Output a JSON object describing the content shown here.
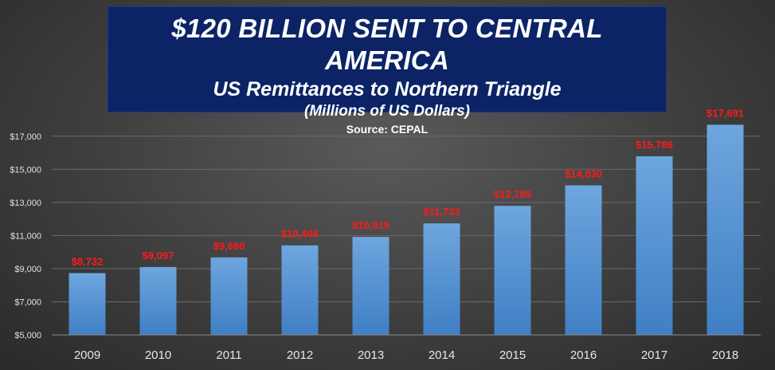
{
  "header": {
    "title": "$120 BILLION SENT TO CENTRAL AMERICA",
    "subtitle": "US Remittances to Northern Triangle",
    "units": "(Millions  of US Dollars)",
    "source": "Source: CEPAL"
  },
  "chart_data": {
    "type": "bar",
    "title": "$120 BILLION SENT TO CENTRAL AMERICA",
    "subtitle": "US Remittances to Northern Triangle",
    "categories": [
      "2009",
      "2010",
      "2011",
      "2012",
      "2013",
      "2014",
      "2015",
      "2016",
      "2017",
      "2018"
    ],
    "values": [
      8732,
      9097,
      9680,
      10405,
      10919,
      11733,
      12789,
      14030,
      15786,
      17691
    ],
    "data_labels": [
      "$8,732",
      "$9,097",
      "$9,680",
      "$10,405",
      "$10,919",
      "$11,733",
      "$12,789",
      "$14,030",
      "$15,786",
      "$17,691"
    ],
    "ylim": [
      5000,
      18000
    ],
    "yticks": [
      5000,
      7000,
      9000,
      11000,
      13000,
      15000,
      17000
    ],
    "ytick_labels": [
      "$5,000",
      "$7,000",
      "$9,000",
      "$11,000",
      "$13,000",
      "$15,000",
      "$17,000"
    ],
    "grid": true,
    "legend": "none",
    "colors": {
      "bar_top": "#6ea6de",
      "bar_bottom": "#3f7fc4",
      "data_label": "#ff1a1a"
    }
  }
}
